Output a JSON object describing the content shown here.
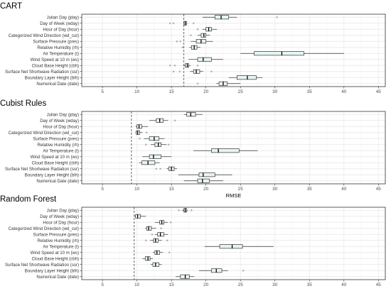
{
  "chart_data": {
    "type": "box",
    "xlabel": "RMSE",
    "xticks": [
      5,
      10,
      15,
      20,
      25,
      30,
      35,
      40,
      45
    ],
    "xlim": [
      2,
      46
    ],
    "grid": true,
    "features": [
      "Julian Day (jday)",
      "Day of Week (wday)",
      "Hour of Day (hour)",
      "Categorized Wind Direction (wd_cut)",
      "Surface Pressure (pres)",
      "Relative Humidity (rh)",
      "Air Temperature (t)",
      "Wind Speed at 10 m (ws)",
      "Cloud Base Height (cbh)",
      "Surface Net Shortwave Radiation (ssr)",
      "Boundary Layer Height (blh)",
      "Numerical Date (date)"
    ],
    "panels": [
      {
        "title": "CART",
        "baseline": 16.8,
        "show_xlabel": false,
        "boxes": [
          {
            "min": 19.5,
            "q1": 21.3,
            "median": 22.2,
            "q3": 23.3,
            "max": 24.5,
            "outliers": [
              30.3
            ]
          },
          {
            "min": 16.8,
            "q1": 16.8,
            "median": 17.0,
            "q3": 17.2,
            "max": 17.3,
            "outliers": [
              14.8,
              15.3,
              18.2
            ]
          },
          {
            "min": 19.5,
            "q1": 20.0,
            "median": 20.4,
            "q3": 20.8,
            "max": 21.6,
            "outliers": [
              18.8
            ]
          },
          {
            "min": 18.8,
            "q1": 19.3,
            "median": 19.7,
            "q3": 20.0,
            "max": 20.6,
            "outliers": [
              17.8
            ]
          },
          {
            "min": 17.8,
            "q1": 18.6,
            "median": 19.3,
            "q3": 20.0,
            "max": 21.0,
            "outliers": [
              15.8,
              16.3
            ]
          },
          {
            "min": 17.6,
            "q1": 17.9,
            "median": 18.3,
            "q3": 18.7,
            "max": 19.2,
            "outliers": [
              16.6
            ]
          },
          {
            "min": 25.0,
            "q1": 27.0,
            "median": 31.0,
            "q3": 34.2,
            "max": 40.0,
            "outliers": []
          },
          {
            "min": 17.5,
            "q1": 18.8,
            "median": 19.6,
            "q3": 20.8,
            "max": 22.5,
            "outliers": []
          },
          {
            "min": 16.7,
            "q1": 17.0,
            "median": 17.3,
            "q3": 17.5,
            "max": 17.8,
            "outliers": [
              14.8,
              15.5,
              18.8
            ]
          },
          {
            "min": 17.7,
            "q1": 18.2,
            "median": 18.6,
            "q3": 19.1,
            "max": 19.6,
            "outliers": [
              15.3,
              16.2,
              20.8
            ]
          },
          {
            "min": 23.3,
            "q1": 24.5,
            "median": 26.0,
            "q3": 27.3,
            "max": 28.2,
            "outliers": []
          },
          {
            "min": 21.5,
            "q1": 21.9,
            "median": 22.5,
            "q3": 23.1,
            "max": 25.0,
            "outliers": [
              18.8
            ]
          }
        ]
      },
      {
        "title": "Cubist Rules",
        "baseline": 9.2,
        "show_xlabel": true,
        "boxes": [
          {
            "min": 16.8,
            "q1": 17.2,
            "median": 17.8,
            "q3": 18.5,
            "max": 19.5,
            "outliers": []
          },
          {
            "min": 11.8,
            "q1": 12.8,
            "median": 13.3,
            "q3": 13.8,
            "max": 14.5,
            "outliers": [
              15.5
            ]
          },
          {
            "min": 9.8,
            "q1": 10.0,
            "median": 10.3,
            "q3": 10.7,
            "max": 11.6,
            "outliers": []
          },
          {
            "min": 9.8,
            "q1": 9.9,
            "median": 10.1,
            "q3": 10.4,
            "max": 10.8,
            "outliers": [
              11.4
            ]
          },
          {
            "min": 11.0,
            "q1": 11.8,
            "median": 12.5,
            "q3": 13.2,
            "max": 14.0,
            "outliers": [
              10.4
            ]
          },
          {
            "min": 12.0,
            "q1": 12.6,
            "median": 13.1,
            "q3": 13.5,
            "max": 14.3,
            "outliers": [
              11.3,
              14.6
            ]
          },
          {
            "min": 18.2,
            "q1": 20.8,
            "median": 21.8,
            "q3": 24.8,
            "max": 27.5,
            "outliers": []
          },
          {
            "min": 10.8,
            "q1": 11.8,
            "median": 12.4,
            "q3": 13.5,
            "max": 15.0,
            "outliers": []
          },
          {
            "min": 10.3,
            "q1": 10.7,
            "median": 11.6,
            "q3": 12.6,
            "max": 13.3,
            "outliers": []
          },
          {
            "min": 14.3,
            "q1": 14.6,
            "median": 15.0,
            "q3": 15.4,
            "max": 15.8,
            "outliers": [
              12.8,
              13.4
            ]
          },
          {
            "min": 16.0,
            "q1": 19.0,
            "median": 19.6,
            "q3": 21.3,
            "max": 23.8,
            "outliers": []
          },
          {
            "min": 16.8,
            "q1": 18.8,
            "median": 19.5,
            "q3": 20.5,
            "max": 22.5,
            "outliers": []
          }
        ]
      },
      {
        "title": "Random Forest",
        "baseline": 9.6,
        "show_xlabel": false,
        "boxes": [
          {
            "min": 16.5,
            "q1": 16.8,
            "median": 17.0,
            "q3": 17.2,
            "max": 17.4,
            "outliers": [
              16.1,
              17.9
            ]
          },
          {
            "min": 9.6,
            "q1": 9.8,
            "median": 10.1,
            "q3": 10.5,
            "max": 11.3,
            "outliers": []
          },
          {
            "min": 12.6,
            "q1": 13.3,
            "median": 13.6,
            "q3": 13.9,
            "max": 14.5,
            "outliers": [
              14.9
            ]
          },
          {
            "min": 11.2,
            "q1": 11.4,
            "median": 11.7,
            "q3": 12.1,
            "max": 12.8,
            "outliers": [
              13.5
            ]
          },
          {
            "min": 12.6,
            "q1": 13.0,
            "median": 13.4,
            "q3": 13.9,
            "max": 14.5,
            "outliers": [
              12.2
            ]
          },
          {
            "min": 11.9,
            "q1": 12.4,
            "median": 12.7,
            "q3": 13.1,
            "max": 13.6,
            "outliers": [
              11.3,
              14.4
            ]
          },
          {
            "min": 19.8,
            "q1": 22.0,
            "median": 23.8,
            "q3": 25.3,
            "max": 29.8,
            "outliers": []
          },
          {
            "min": 12.3,
            "q1": 12.6,
            "median": 12.9,
            "q3": 13.3,
            "max": 13.8,
            "outliers": [
              14.7
            ]
          },
          {
            "min": 10.8,
            "q1": 11.2,
            "median": 11.6,
            "q3": 11.9,
            "max": 12.3,
            "outliers": []
          },
          {
            "min": 12.0,
            "q1": 12.3,
            "median": 12.7,
            "q3": 13.2,
            "max": 13.6,
            "outliers": []
          },
          {
            "min": 19.0,
            "q1": 20.8,
            "median": 21.5,
            "q3": 22.3,
            "max": 23.2,
            "outliers": [
              25.4
            ]
          },
          {
            "min": 15.6,
            "q1": 16.3,
            "median": 17.0,
            "q3": 17.6,
            "max": 18.3,
            "outliers": []
          }
        ]
      }
    ]
  },
  "colors": {
    "box_fill": "#e8f4f4",
    "box_stroke": "#333333",
    "grid": "#ebebeb",
    "panel_border": "#333333",
    "baseline": "#555555",
    "outlier": "#b3b3b3"
  }
}
